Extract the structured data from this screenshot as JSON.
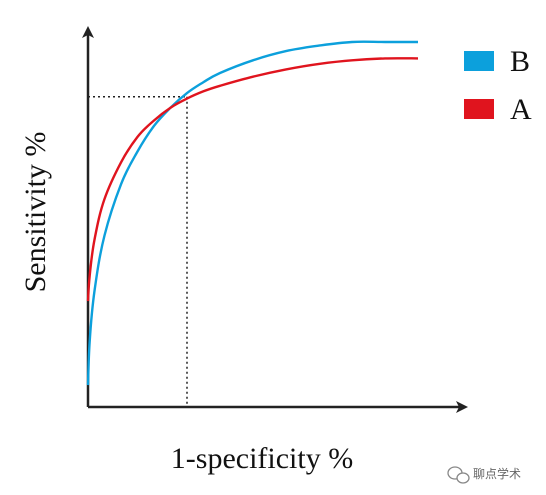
{
  "chart_data": {
    "type": "line",
    "title": "",
    "xlabel": "1-specificity %",
    "ylabel": "Sensitivity %",
    "xlim": [
      0,
      1
    ],
    "ylim": [
      0,
      1
    ],
    "grid": false,
    "legend_position": "top-right",
    "series": [
      {
        "name": "B",
        "color": "#0ca0dc",
        "x": [
          0,
          0.005,
          0.02,
          0.05,
          0.1,
          0.15,
          0.2,
          0.25,
          0.3,
          0.35,
          0.4,
          0.5,
          0.6,
          0.7,
          0.8,
          0.9,
          1.0
        ],
        "y": [
          0.06,
          0.18,
          0.32,
          0.47,
          0.61,
          0.7,
          0.77,
          0.82,
          0.86,
          0.89,
          0.915,
          0.95,
          0.975,
          0.99,
          1.0,
          1.0,
          1.0
        ]
      },
      {
        "name": "A",
        "color": "#e0141e",
        "x": [
          0,
          0.005,
          0.02,
          0.05,
          0.1,
          0.15,
          0.2,
          0.25,
          0.3,
          0.35,
          0.4,
          0.5,
          0.6,
          0.7,
          0.8,
          0.9,
          1.0
        ],
        "y": [
          0.29,
          0.36,
          0.46,
          0.57,
          0.67,
          0.74,
          0.785,
          0.82,
          0.845,
          0.865,
          0.88,
          0.905,
          0.925,
          0.94,
          0.95,
          0.955,
          0.955
        ]
      }
    ],
    "annotations": [
      {
        "type": "dotted-crosshair",
        "x": 0.3,
        "y": 0.85
      }
    ]
  },
  "watermark": {
    "text": "聊点学术"
  }
}
